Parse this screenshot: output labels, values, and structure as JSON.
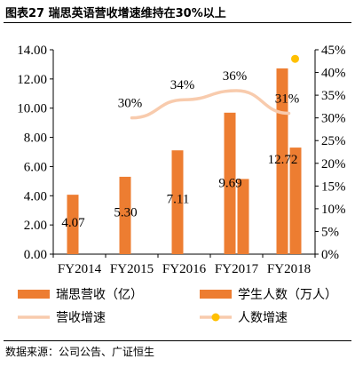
{
  "title": "图表27 瑞思英语营收增速维持在30%以上",
  "source": "数据来源：公司公告、广证恒生",
  "colors": {
    "bar_revenue": "#ED7D31",
    "bar_students": "#ED7D31",
    "line_revenue_growth": "#F8CBAD",
    "point_student_growth": "#FFC000"
  },
  "chart_data": {
    "type": "bar",
    "categories": [
      "FY2014",
      "FY2015",
      "FY2016",
      "FY2017",
      "FY2018"
    ],
    "ylim": [
      0,
      14
    ],
    "y_ticks": [
      "0.00",
      "2.00",
      "4.00",
      "6.00",
      "8.00",
      "10.00",
      "12.00",
      "14.00"
    ],
    "y2lim": [
      0,
      45
    ],
    "y2_ticks": [
      "0%",
      "5%",
      "10%",
      "15%",
      "20%",
      "25%",
      "30%",
      "35%",
      "40%",
      "45%"
    ],
    "grid": false,
    "legend_position": "bottom",
    "series": [
      {
        "name": "瑞思营收（亿）",
        "kind": "bar",
        "axis": "left",
        "values": [
          4.07,
          5.3,
          7.11,
          9.69,
          12.72
        ],
        "labels": [
          "4.07",
          "5.30",
          "7.11",
          "9.69",
          "12.72"
        ]
      },
      {
        "name": "学生人数（万人）",
        "kind": "bar",
        "axis": "left",
        "values": [
          null,
          null,
          null,
          5.15,
          7.3
        ],
        "labels": []
      },
      {
        "name": "营收增速",
        "kind": "line",
        "axis": "right",
        "values": [
          null,
          30,
          34,
          36,
          31
        ],
        "labels": [
          "",
          "30%",
          "34%",
          "36%",
          "31%"
        ]
      },
      {
        "name": "人数增速",
        "kind": "point",
        "axis": "right",
        "values": [
          null,
          null,
          null,
          null,
          43
        ],
        "labels": []
      }
    ]
  }
}
